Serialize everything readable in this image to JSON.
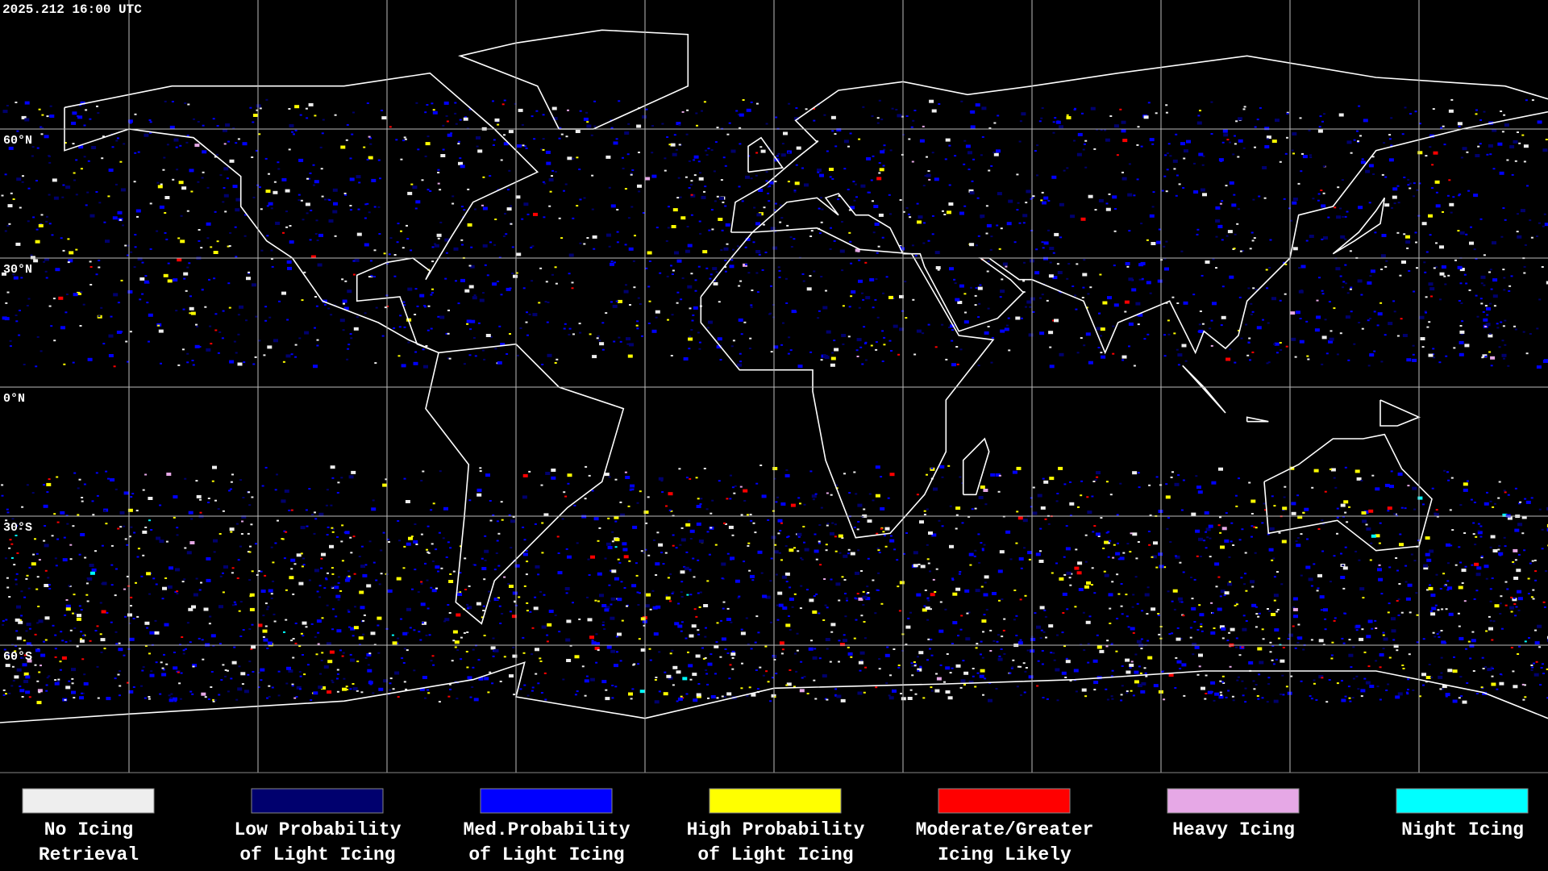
{
  "timestamp": "2025.212 16:00 UTC",
  "latitude_labels": [
    "60°N",
    "30°N",
    "0°N",
    "30°S",
    "60°S"
  ],
  "legend": [
    {
      "label": [
        "No Icing",
        "Retrieval"
      ],
      "color": "#eeeeee"
    },
    {
      "label": [
        "Low Probability",
        "of Light Icing"
      ],
      "color": "#00006e"
    },
    {
      "label": [
        "Med.Probability",
        "of Light Icing"
      ],
      "color": "#0000ff"
    },
    {
      "label": [
        "High Probability",
        "of Light Icing"
      ],
      "color": "#ffff00"
    },
    {
      "label": [
        "Moderate/Greater",
        "Icing Likely"
      ],
      "color": "#ff0000"
    },
    {
      "label": [
        "Heavy Icing"
      ],
      "color": "#e6a8e6"
    },
    {
      "label": [
        "Night Icing"
      ],
      "color": "#00ffff"
    }
  ]
}
